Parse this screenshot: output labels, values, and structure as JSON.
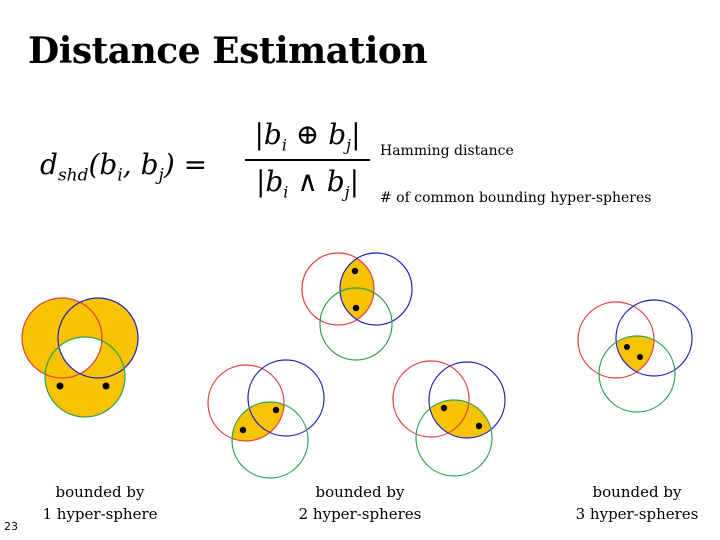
{
  "slide": {
    "title": "Distance Estimation",
    "page_number": "23"
  },
  "formula": {
    "lhs": "d",
    "lhs_sub": "shd",
    "lhs_args_open": "(b",
    "arg1_sub": "i",
    "comma": ", b",
    "arg2_sub": "j",
    "lhs_args_close": ") =",
    "numerator_left": "|b",
    "numerator_op": " ⊕ b",
    "numerator_right": "|",
    "denominator_left": "|b",
    "denominator_op": " ∧ b",
    "denominator_right": "|"
  },
  "annotations": {
    "numerator_note": "Hamming distance",
    "denominator_note": "# of common bounding hyper-spheres"
  },
  "captions": {
    "one": {
      "line1": "bounded by",
      "line2": "1 hyper-sphere"
    },
    "two": {
      "line1": "bounded by",
      "line2": "2 hyper-spheres"
    },
    "three": {
      "line1": "bounded by",
      "line2": "3 hyper-spheres"
    }
  },
  "colors": {
    "fill": "#f8c300",
    "red_circle": "#e04040",
    "blue_circle": "#2020c0",
    "green_circle": "#30a050",
    "point": "#000000"
  }
}
